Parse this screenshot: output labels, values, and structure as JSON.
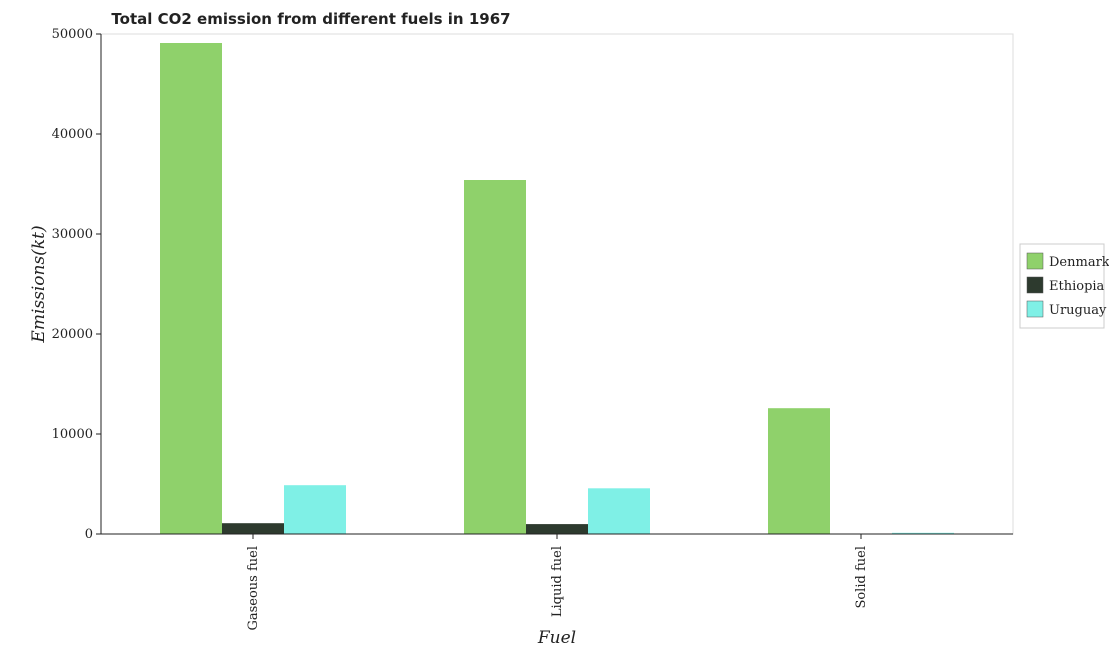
{
  "chart_data": {
    "type": "bar",
    "title": "Total CO2 emission from different fuels in 1967",
    "xlabel": "Fuel",
    "ylabel": "Emissions(kt)",
    "categories": [
      "Gaseous fuel",
      "Liquid fuel",
      "Solid fuel"
    ],
    "ylim": [
      0,
      50000
    ],
    "yticks": [
      0,
      10000,
      20000,
      30000,
      40000,
      50000
    ],
    "ytick_labels": [
      "0",
      "10000",
      "20000",
      "30000",
      "40000",
      "50000"
    ],
    "grid": false,
    "legend_position": "right",
    "series": [
      {
        "name": "Denmark",
        "color": "#8fd16b",
        "values": [
          49100,
          35400,
          12580
        ]
      },
      {
        "name": "Ethiopia",
        "color": "#2d3a2e",
        "values": [
          1080,
          990,
          30
        ]
      },
      {
        "name": "Uruguay",
        "color": "#7ff0e6",
        "values": [
          4880,
          4570,
          120
        ]
      }
    ]
  }
}
